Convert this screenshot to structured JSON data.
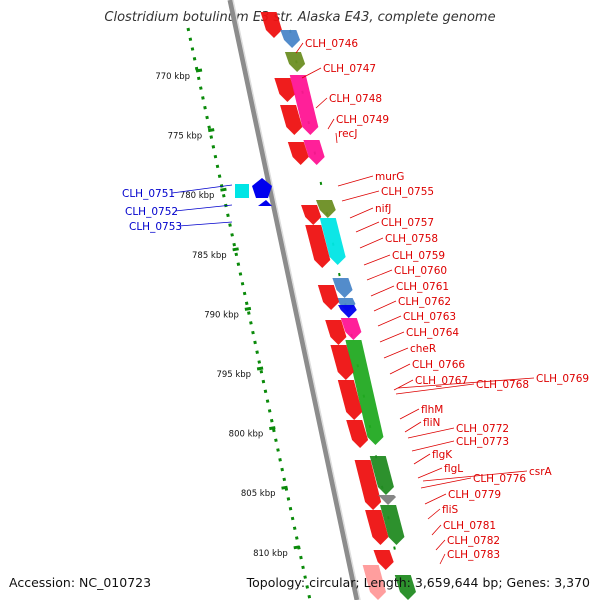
{
  "title": "Clostridium botulinum E3 str. Alaska E43, complete genome",
  "footer": {
    "accession": "Accession: NC_010723",
    "topology": "Topology: circular; Length: 3,659,644 bp; Genes: 3,370"
  },
  "colors": {
    "backbone": "#8c8c8c",
    "forward_label": "#dd0000",
    "reverse_label": "#0000cc",
    "tick": "#0a8a0a"
  },
  "scale_ticks": [
    "770 kbp",
    "775 kbp",
    "780 kbp",
    "785 kbp",
    "790 kbp",
    "795 kbp",
    "800 kbp",
    "805 kbp",
    "810 kbp"
  ],
  "forward_genes": [
    "CLH_0746",
    "CLH_0747",
    "CLH_0748",
    "CLH_0749",
    "recJ",
    "murG",
    "CLH_0755",
    "nifJ",
    "CLH_0757",
    "CLH_0758",
    "CLH_0759",
    "CLH_0760",
    "CLH_0761",
    "CLH_0762",
    "CLH_0763",
    "CLH_0764",
    "cheR",
    "CLH_0766",
    "CLH_0767",
    "CLH_0768",
    "CLH_0769",
    "flhM",
    "fliN",
    "CLH_0772",
    "CLH_0773",
    "flgK",
    "flgL",
    "CLH_0776",
    "csrA",
    "CLH_0779",
    "fliS",
    "CLH_0781",
    "CLH_0782",
    "CLH_0783"
  ],
  "reverse_genes": [
    "CLH_0751",
    "CLH_0752",
    "CLH_0753"
  ]
}
